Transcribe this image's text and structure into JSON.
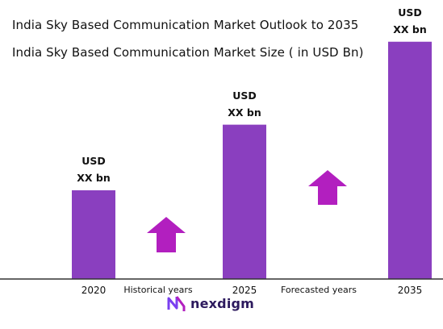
{
  "chart_data": {
    "type": "bar",
    "title": "India Sky Based Communication Market Outlook to 2035",
    "subtitle": "India Sky Based Communication Market Size ( in USD Bn)",
    "categories": [
      "2020",
      "2025",
      "2035"
    ],
    "values": [
      4.6,
      8.0,
      12.3
    ],
    "value_labels": [
      [
        "USD",
        "XX bn"
      ],
      [
        "USD",
        "XX bn"
      ],
      [
        "USD",
        "XX bn"
      ]
    ],
    "period_labels": [
      "Historical years",
      "Forecasted years"
    ],
    "bar_color": "#8a3fbf",
    "arrow_color": "#b21fbf",
    "ylim": [
      0,
      13
    ],
    "grid": false,
    "legend": "none"
  },
  "brand": {
    "logo_text": "nexdigm",
    "logo_color": "#2d1a5e",
    "logo_accent": "#7a3ff0"
  }
}
